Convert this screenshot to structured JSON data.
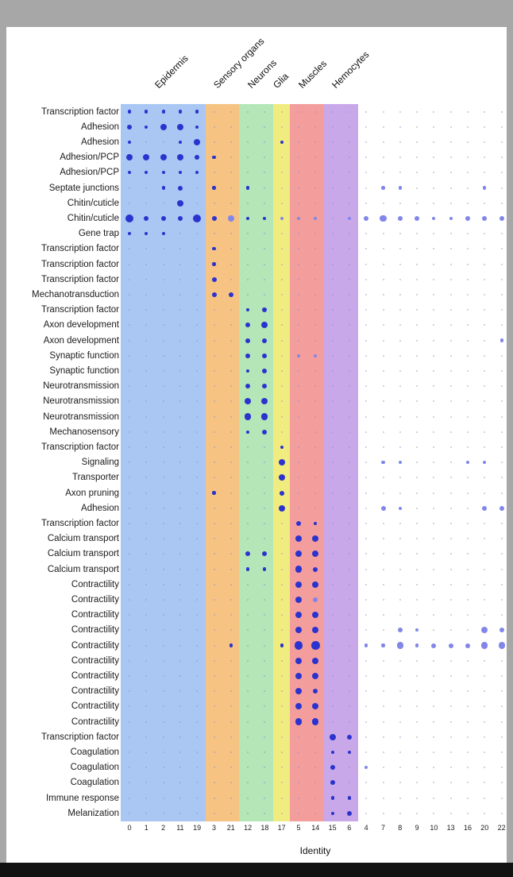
{
  "chart_data": {
    "type": "scatter",
    "subtype": "dot-plot",
    "xlabel": "Identity",
    "x_categories": [
      "0",
      "1",
      "2",
      "11",
      "19",
      "3",
      "21",
      "12",
      "18",
      "17",
      "5",
      "14",
      "15",
      "6",
      "4",
      "7",
      "8",
      "9",
      "10",
      "13",
      "16",
      "20",
      "22"
    ],
    "col_groups": [
      {
        "label": "Epidermis",
        "start": 0,
        "end": 4,
        "color": "#a9c7f2"
      },
      {
        "label": "Sensory organs",
        "start": 5,
        "end": 6,
        "color": "#f6c383"
      },
      {
        "label": "Neurons",
        "start": 7,
        "end": 8,
        "color": "#b4e6b7"
      },
      {
        "label": "Glia",
        "start": 9,
        "end": 9,
        "color": "#f1ec80"
      },
      {
        "label": "Muscles",
        "start": 10,
        "end": 11,
        "color": "#f49d9d"
      },
      {
        "label": "Hemocytes",
        "start": 12,
        "end": 13,
        "color": "#c9a8ea"
      }
    ],
    "dot_colors": {
      "d": "#2b33cf",
      "l": "#8286e8",
      "faint": "#8d91cc"
    },
    "size_scale": [
      0,
      1.2,
      2.1,
      3.0,
      4.1,
      5.3
    ],
    "grid": false,
    "legend": "none",
    "rows": [
      {
        "label": "Transcription factor",
        "dots": [
          [
            0,
            2,
            "d"
          ],
          [
            1,
            2,
            "d"
          ],
          [
            2,
            2,
            "d"
          ],
          [
            3,
            2,
            "d"
          ],
          [
            4,
            2,
            "d"
          ]
        ]
      },
      {
        "label": "Adhesion",
        "dots": [
          [
            0,
            3,
            "d"
          ],
          [
            1,
            2,
            "d"
          ],
          [
            2,
            4,
            "d"
          ],
          [
            3,
            4,
            "d"
          ],
          [
            4,
            2,
            "d"
          ]
        ]
      },
      {
        "label": "Adhesion",
        "dots": [
          [
            0,
            2,
            "d"
          ],
          [
            3,
            2,
            "d"
          ],
          [
            4,
            4,
            "d"
          ],
          [
            9,
            2,
            "d"
          ]
        ]
      },
      {
        "label": "Adhesion/PCP",
        "dots": [
          [
            0,
            4,
            "d"
          ],
          [
            1,
            4,
            "d"
          ],
          [
            2,
            4,
            "d"
          ],
          [
            3,
            4,
            "d"
          ],
          [
            4,
            3,
            "d"
          ],
          [
            5,
            2,
            "d"
          ]
        ]
      },
      {
        "label": "Adhesion/PCP",
        "dots": [
          [
            0,
            2,
            "d"
          ],
          [
            1,
            2,
            "d"
          ],
          [
            2,
            2,
            "d"
          ],
          [
            3,
            2,
            "d"
          ],
          [
            4,
            2,
            "d"
          ]
        ]
      },
      {
        "label": "Septate junctions",
        "dots": [
          [
            2,
            2,
            "d"
          ],
          [
            3,
            3,
            "d"
          ],
          [
            5,
            2,
            "d"
          ],
          [
            7,
            2,
            "d"
          ],
          [
            15,
            2,
            "l"
          ],
          [
            16,
            2,
            "l"
          ],
          [
            21,
            2,
            "l"
          ]
        ]
      },
      {
        "label": "Chitin/cuticle",
        "dots": [
          [
            3,
            4,
            "d"
          ]
        ]
      },
      {
        "label": "Chitin/cuticle",
        "dots": [
          [
            0,
            5,
            "d"
          ],
          [
            1,
            3,
            "d"
          ],
          [
            2,
            3,
            "d"
          ],
          [
            3,
            3,
            "d"
          ],
          [
            4,
            5,
            "d"
          ],
          [
            5,
            3,
            "d"
          ],
          [
            6,
            4,
            "l"
          ],
          [
            7,
            2,
            "d"
          ],
          [
            8,
            2,
            "d"
          ],
          [
            9,
            2,
            "l"
          ],
          [
            10,
            2,
            "l"
          ],
          [
            11,
            2,
            "l"
          ],
          [
            13,
            2,
            "l"
          ],
          [
            14,
            3,
            "l"
          ],
          [
            15,
            4,
            "l"
          ],
          [
            16,
            3,
            "l"
          ],
          [
            17,
            3,
            "l"
          ],
          [
            18,
            2,
            "l"
          ],
          [
            19,
            2,
            "l"
          ],
          [
            20,
            3,
            "l"
          ],
          [
            21,
            3,
            "l"
          ],
          [
            22,
            3,
            "l"
          ]
        ]
      },
      {
        "label": "Gene trap",
        "dots": [
          [
            0,
            2,
            "d"
          ],
          [
            1,
            2,
            "d"
          ],
          [
            2,
            2,
            "d"
          ]
        ]
      },
      {
        "label": "Transcription factor",
        "dots": [
          [
            5,
            2,
            "d"
          ]
        ]
      },
      {
        "label": "Transcription factor",
        "dots": [
          [
            5,
            2,
            "d"
          ]
        ]
      },
      {
        "label": "Transcription factor",
        "dots": [
          [
            5,
            3,
            "d"
          ]
        ]
      },
      {
        "label": "Mechanotransduction",
        "dots": [
          [
            5,
            3,
            "d"
          ],
          [
            6,
            3,
            "d"
          ]
        ]
      },
      {
        "label": "Transcription factor",
        "dots": [
          [
            7,
            2,
            "d"
          ],
          [
            8,
            3,
            "d"
          ]
        ]
      },
      {
        "label": "Axon development",
        "dots": [
          [
            7,
            3,
            "d"
          ],
          [
            8,
            4,
            "d"
          ]
        ]
      },
      {
        "label": "Axon development",
        "dots": [
          [
            7,
            3,
            "d"
          ],
          [
            8,
            3,
            "d"
          ],
          [
            22,
            2,
            "l"
          ]
        ]
      },
      {
        "label": "Synaptic function",
        "dots": [
          [
            7,
            3,
            "d"
          ],
          [
            8,
            3,
            "d"
          ],
          [
            10,
            2,
            "l"
          ],
          [
            11,
            2,
            "l"
          ]
        ]
      },
      {
        "label": "Synaptic function",
        "dots": [
          [
            7,
            2,
            "d"
          ],
          [
            8,
            3,
            "d"
          ]
        ]
      },
      {
        "label": "Neurotransmission",
        "dots": [
          [
            7,
            3,
            "d"
          ],
          [
            8,
            3,
            "d"
          ]
        ]
      },
      {
        "label": "Neurotransmission",
        "dots": [
          [
            7,
            4,
            "d"
          ],
          [
            8,
            4,
            "d"
          ]
        ]
      },
      {
        "label": "Neurotransmission",
        "dots": [
          [
            7,
            4,
            "d"
          ],
          [
            8,
            4,
            "d"
          ]
        ]
      },
      {
        "label": "Mechanosensory",
        "dots": [
          [
            7,
            2,
            "d"
          ],
          [
            8,
            3,
            "d"
          ]
        ]
      },
      {
        "label": "Transcription factor",
        "dots": [
          [
            9,
            2,
            "d"
          ]
        ]
      },
      {
        "label": "Signaling",
        "dots": [
          [
            9,
            4,
            "d"
          ],
          [
            15,
            2,
            "l"
          ],
          [
            16,
            2,
            "l"
          ],
          [
            20,
            2,
            "l"
          ],
          [
            21,
            2,
            "l"
          ]
        ]
      },
      {
        "label": "Transporter",
        "dots": [
          [
            9,
            4,
            "d"
          ]
        ]
      },
      {
        "label": "Axon pruning",
        "dots": [
          [
            5,
            2,
            "d"
          ],
          [
            9,
            3,
            "d"
          ]
        ]
      },
      {
        "label": "Adhesion",
        "dots": [
          [
            9,
            4,
            "d"
          ],
          [
            15,
            3,
            "l"
          ],
          [
            16,
            2,
            "l"
          ],
          [
            21,
            3,
            "l"
          ],
          [
            22,
            3,
            "l"
          ]
        ]
      },
      {
        "label": "Transcription factor",
        "dots": [
          [
            10,
            3,
            "d"
          ],
          [
            11,
            2,
            "d"
          ]
        ]
      },
      {
        "label": "Calcium transport",
        "dots": [
          [
            10,
            4,
            "d"
          ],
          [
            11,
            4,
            "d"
          ]
        ]
      },
      {
        "label": "Calcium transport",
        "dots": [
          [
            7,
            3,
            "d"
          ],
          [
            8,
            3,
            "d"
          ],
          [
            10,
            4,
            "d"
          ],
          [
            11,
            4,
            "d"
          ]
        ]
      },
      {
        "label": "Calcium transport",
        "dots": [
          [
            7,
            2,
            "d"
          ],
          [
            8,
            2,
            "d"
          ],
          [
            10,
            4,
            "d"
          ],
          [
            11,
            3,
            "d"
          ]
        ]
      },
      {
        "label": "Contractility",
        "dots": [
          [
            10,
            4,
            "d"
          ],
          [
            11,
            4,
            "d"
          ]
        ]
      },
      {
        "label": "Contractility",
        "dots": [
          [
            10,
            4,
            "d"
          ],
          [
            11,
            3,
            "l"
          ]
        ]
      },
      {
        "label": "Contractility",
        "dots": [
          [
            10,
            4,
            "d"
          ],
          [
            11,
            4,
            "d"
          ]
        ]
      },
      {
        "label": "Contractility",
        "dots": [
          [
            10,
            4,
            "d"
          ],
          [
            11,
            4,
            "d"
          ],
          [
            16,
            3,
            "l"
          ],
          [
            17,
            2,
            "l"
          ],
          [
            21,
            4,
            "l"
          ],
          [
            22,
            3,
            "l"
          ]
        ]
      },
      {
        "label": "Contractility",
        "dots": [
          [
            6,
            2,
            "d"
          ],
          [
            9,
            2,
            "d"
          ],
          [
            10,
            5,
            "d"
          ],
          [
            11,
            5,
            "d"
          ],
          [
            14,
            2,
            "l"
          ],
          [
            15,
            2,
            "l"
          ],
          [
            16,
            4,
            "l"
          ],
          [
            17,
            2,
            "l"
          ],
          [
            18,
            3,
            "l"
          ],
          [
            19,
            3,
            "l"
          ],
          [
            20,
            3,
            "l"
          ],
          [
            21,
            4,
            "l"
          ],
          [
            22,
            4,
            "l"
          ]
        ]
      },
      {
        "label": "Contractility",
        "dots": [
          [
            10,
            4,
            "d"
          ],
          [
            11,
            4,
            "d"
          ]
        ]
      },
      {
        "label": "Contractility",
        "dots": [
          [
            10,
            4,
            "d"
          ],
          [
            11,
            4,
            "d"
          ]
        ]
      },
      {
        "label": "Contractility",
        "dots": [
          [
            10,
            4,
            "d"
          ],
          [
            11,
            3,
            "d"
          ]
        ]
      },
      {
        "label": "Contractility",
        "dots": [
          [
            10,
            4,
            "d"
          ],
          [
            11,
            4,
            "d"
          ]
        ]
      },
      {
        "label": "Contractility",
        "dots": [
          [
            10,
            4,
            "d"
          ],
          [
            11,
            4,
            "d"
          ]
        ]
      },
      {
        "label": "Transcription factor",
        "dots": [
          [
            12,
            4,
            "d"
          ],
          [
            13,
            3,
            "d"
          ]
        ]
      },
      {
        "label": "Coagulation",
        "dots": [
          [
            12,
            2,
            "d"
          ],
          [
            13,
            2,
            "d"
          ]
        ]
      },
      {
        "label": "Coagulation",
        "dots": [
          [
            12,
            3,
            "d"
          ],
          [
            14,
            2,
            "l"
          ]
        ]
      },
      {
        "label": "Coagulation",
        "dots": [
          [
            12,
            3,
            "d"
          ]
        ]
      },
      {
        "label": "Immune response",
        "dots": [
          [
            12,
            2,
            "d"
          ],
          [
            13,
            2,
            "d"
          ]
        ]
      },
      {
        "label": "Melanization",
        "dots": [
          [
            12,
            2,
            "d"
          ],
          [
            13,
            3,
            "d"
          ]
        ]
      }
    ]
  }
}
